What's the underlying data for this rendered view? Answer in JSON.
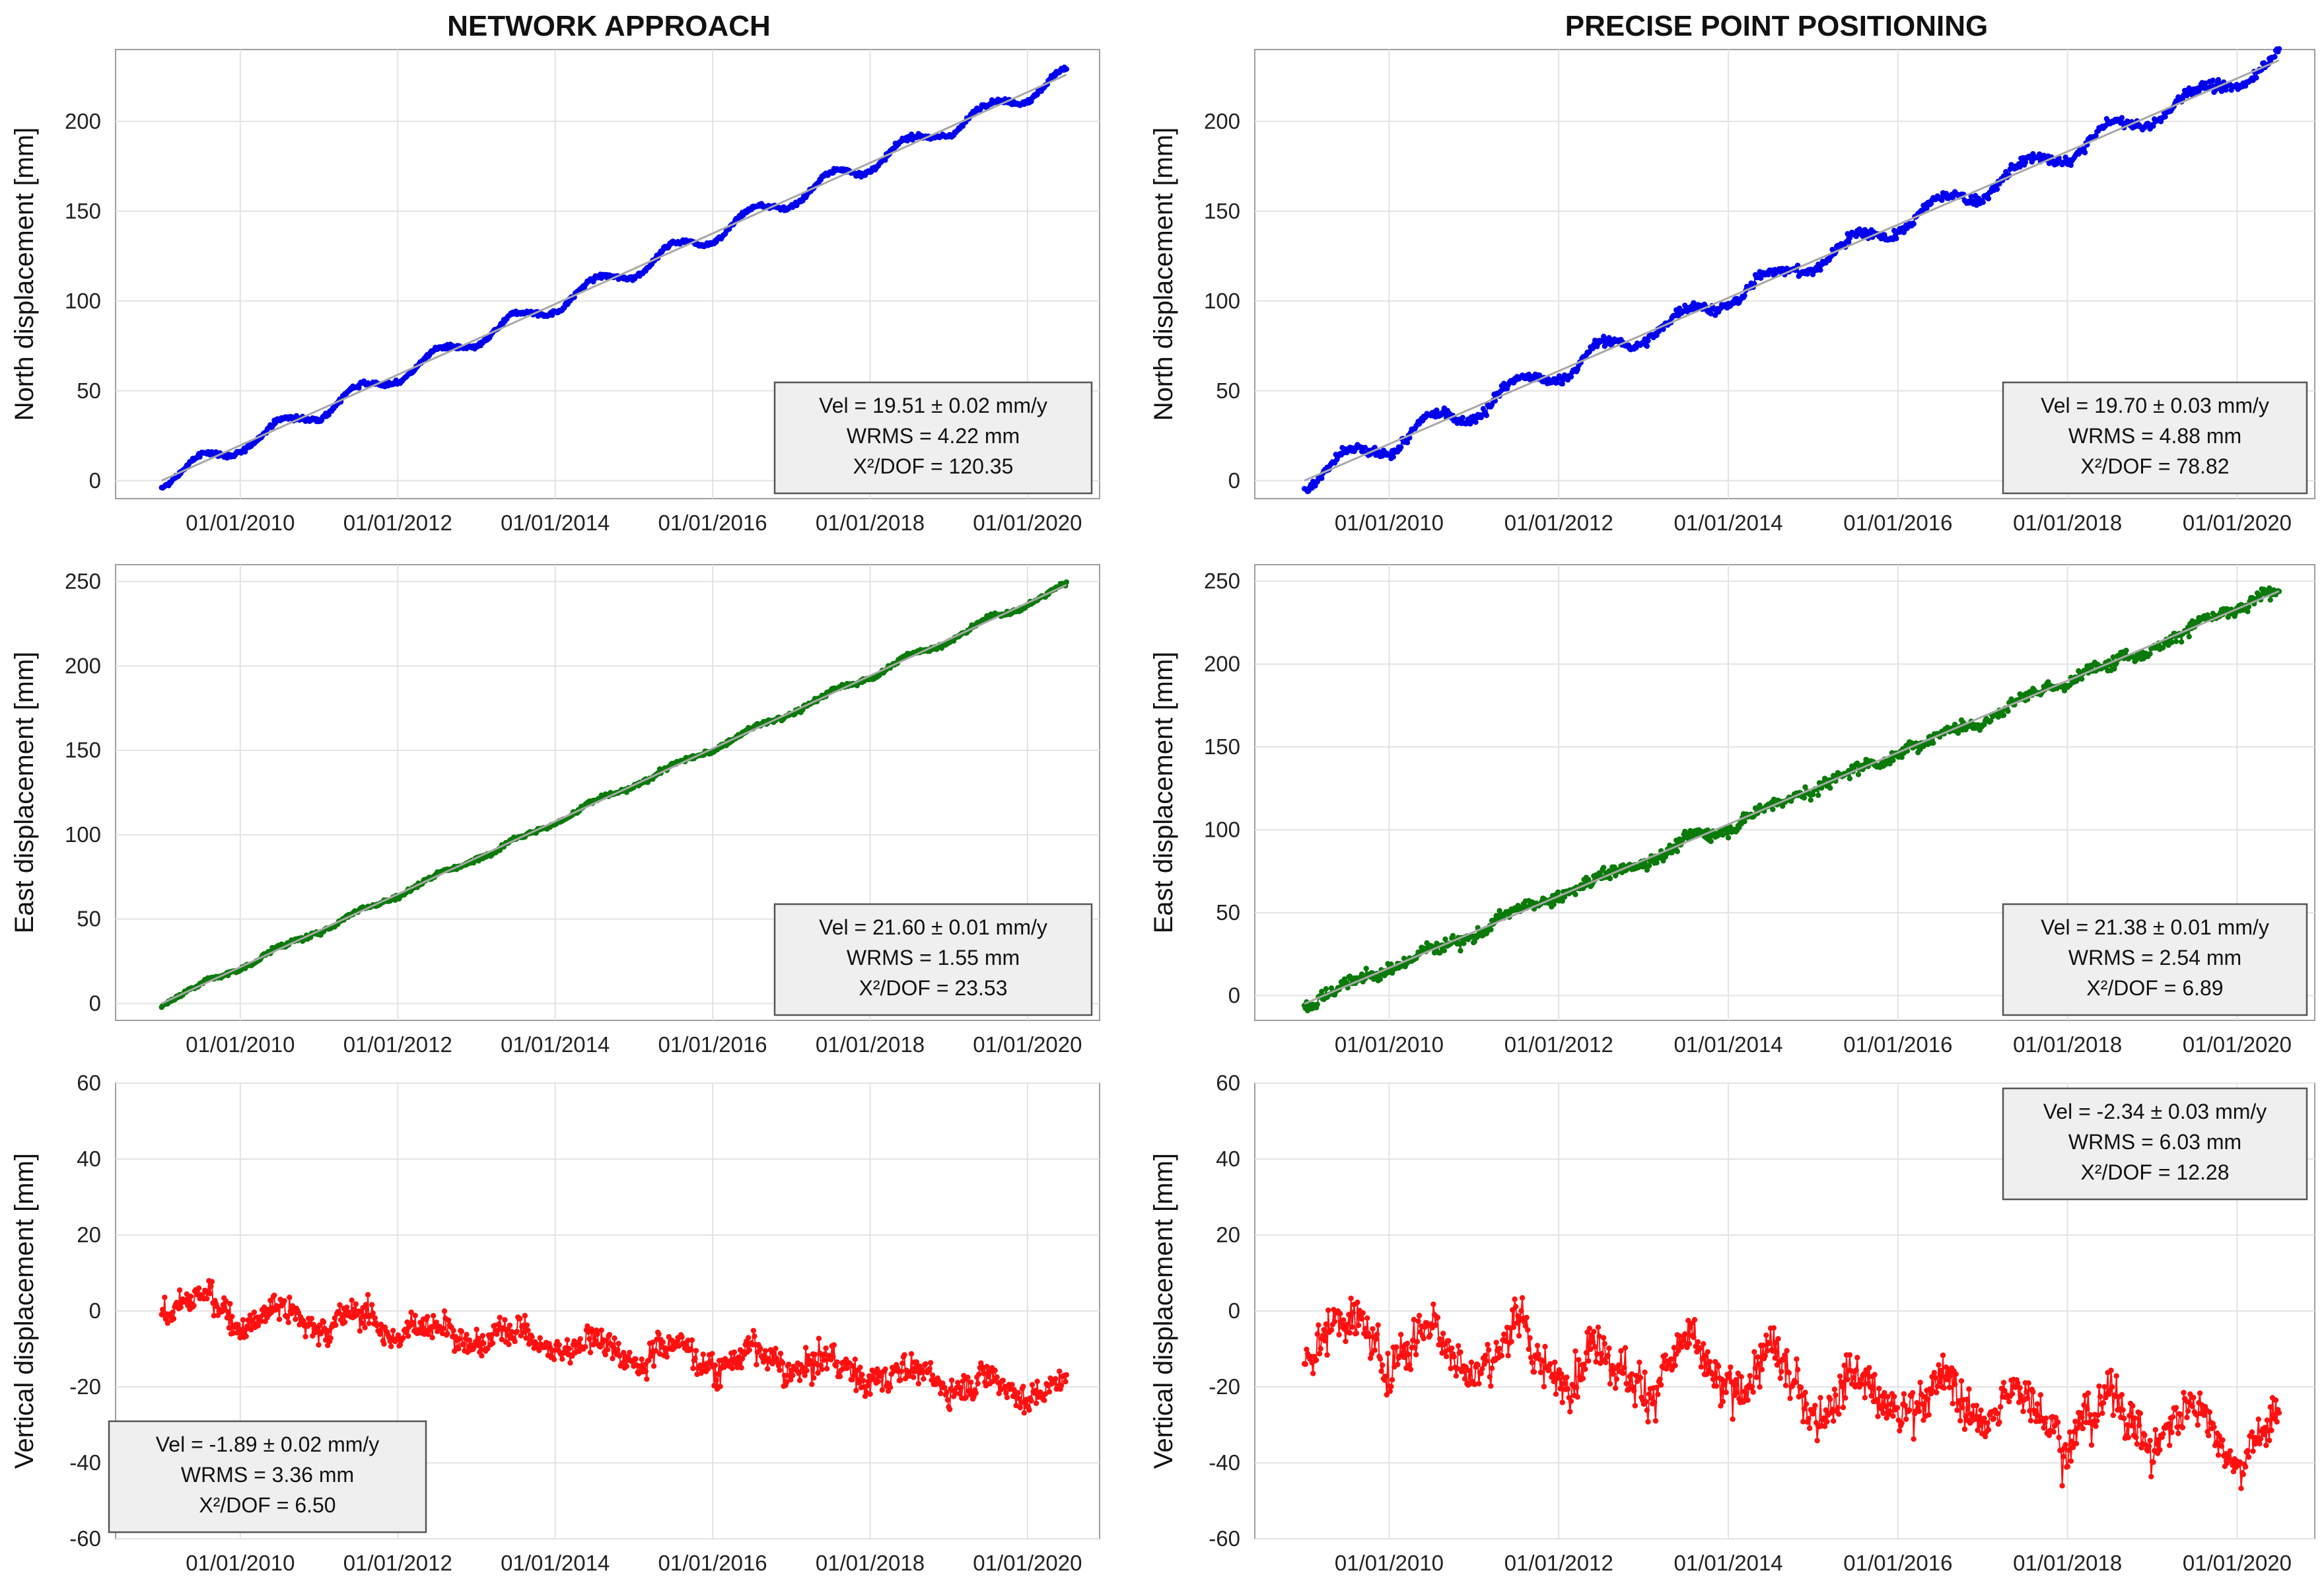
{
  "figure": {
    "columns": [
      "NETWORK APPROACH",
      "PRECISE POINT POSITIONING"
    ]
  },
  "chart_data": [
    {
      "id": "na-north",
      "type": "scatter",
      "column": "NETWORK APPROACH",
      "ylabel": "North displacement  [mm]",
      "xlabel": "",
      "xlim": [
        "2008-06-01",
        "2020-12-01"
      ],
      "ylim": [
        -10,
        240
      ],
      "yticks": [
        0,
        50,
        100,
        150,
        200
      ],
      "xtick_labels": [
        "01/01/2010",
        "01/01/2012",
        "01/01/2014",
        "01/01/2016",
        "01/01/2018",
        "01/01/2020"
      ],
      "color": "#0000ee",
      "series_name": "North displacement",
      "start": "2009-01-01",
      "end": "2020-06-30",
      "start_value": 0,
      "end_value": 226,
      "seasonal_amplitude": 4.5,
      "noise": 1.2,
      "has_fit_line": true,
      "stats": {
        "vel": "Vel = 19.51 ± 0.02 mm/y",
        "wrms": "WRMS = 4.22 mm",
        "chi": "X²/DOF = 120.35",
        "position": "bottom-right"
      }
    },
    {
      "id": "ppp-north",
      "type": "scatter",
      "column": "PRECISE POINT POSITIONING",
      "ylabel": "North displacement [mm]",
      "xlabel": "",
      "xlim": [
        "2008-06-01",
        "2020-12-01"
      ],
      "ylim": [
        -10,
        240
      ],
      "yticks": [
        0,
        50,
        100,
        150,
        200
      ],
      "xtick_labels": [
        "01/01/2010",
        "01/01/2012",
        "01/01/2014",
        "01/01/2016",
        "01/01/2018",
        "01/01/2020"
      ],
      "color": "#0000ee",
      "series_name": "North displacement",
      "start": "2009-01-01",
      "end": "2020-06-30",
      "start_value": 0,
      "end_value": 234,
      "seasonal_amplitude": 5.5,
      "noise": 2.5,
      "has_fit_line": true,
      "stats": {
        "vel": "Vel = 19.70 ± 0.03 mm/y",
        "wrms": "WRMS = 4.88 mm",
        "chi": "X²/DOF = 78.82",
        "position": "bottom-right"
      }
    },
    {
      "id": "na-east",
      "type": "scatter",
      "column": "NETWORK APPROACH",
      "ylabel": "East displacement [mm]",
      "xlabel": "",
      "xlim": [
        "2008-06-01",
        "2020-12-01"
      ],
      "ylim": [
        -10,
        260
      ],
      "yticks": [
        0,
        50,
        100,
        150,
        200,
        250
      ],
      "xtick_labels": [
        "01/01/2010",
        "01/01/2012",
        "01/01/2014",
        "01/01/2016",
        "01/01/2018",
        "01/01/2020"
      ],
      "color": "#0b7a0b",
      "series_name": "East displacement",
      "start": "2009-01-01",
      "end": "2020-06-30",
      "start_value": 0,
      "end_value": 248,
      "seasonal_amplitude": 1.5,
      "noise": 1.2,
      "has_fit_line": true,
      "stats": {
        "vel": "Vel = 21.60 ± 0.01 mm/y",
        "wrms": "WRMS = 1.55 mm",
        "chi": "X²/DOF = 23.53",
        "position": "bottom-right"
      }
    },
    {
      "id": "ppp-east",
      "type": "scatter",
      "column": "PRECISE POINT POSITIONING",
      "ylabel": "East displacement [mm]",
      "xlabel": "",
      "xlim": [
        "2008-06-01",
        "2020-12-01"
      ],
      "ylim": [
        -15,
        260
      ],
      "yticks": [
        0,
        50,
        100,
        150,
        200,
        250
      ],
      "xtick_labels": [
        "01/01/2010",
        "01/01/2012",
        "01/01/2014",
        "01/01/2016",
        "01/01/2018",
        "01/01/2020"
      ],
      "color": "#0b7a0b",
      "series_name": "East displacement",
      "start": "2009-01-01",
      "end": "2020-06-30",
      "start_value": -5,
      "end_value": 244,
      "seasonal_amplitude": 2,
      "noise": 3.5,
      "has_fit_line": true,
      "stats": {
        "vel": "Vel = 21.38 ± 0.01 mm/y",
        "wrms": "WRMS = 2.54 mm",
        "chi": "X²/DOF = 6.89",
        "position": "bottom-right"
      }
    },
    {
      "id": "na-vertical",
      "type": "scatter",
      "column": "NETWORK APPROACH",
      "ylabel": "Vertical displacement [mm]",
      "xlabel": "",
      "xlim": [
        "2008-06-01",
        "2020-12-01"
      ],
      "ylim": [
        -60,
        60
      ],
      "yticks": [
        -60,
        -40,
        -20,
        0,
        20,
        40,
        60
      ],
      "xtick_labels": [
        "01/01/2010",
        "01/01/2012",
        "01/01/2014",
        "01/01/2016",
        "01/01/2018",
        "01/01/2020"
      ],
      "color": "#ff1111",
      "series_name": "Vertical displacement",
      "start": "2009-01-01",
      "end": "2020-06-30",
      "start_value": 2,
      "end_value": -21,
      "seasonal_amplitude": 3,
      "noise": 3.5,
      "has_fit_line": false,
      "stats": {
        "vel": "Vel = -1.89 ± 0.02 mm/y",
        "wrms": "WRMS = 3.36 mm",
        "chi": "X²/DOF = 6.50",
        "position": "bottom-left"
      }
    },
    {
      "id": "ppp-vertical",
      "type": "scatter",
      "column": "PRECISE POINT POSITIONING",
      "ylabel": "Vertical displacement [mm]",
      "xlabel": "",
      "xlim": [
        "2008-06-01",
        "2020-12-01"
      ],
      "ylim": [
        -60,
        60
      ],
      "yticks": [
        -60,
        -40,
        -20,
        0,
        20,
        40,
        60
      ],
      "xtick_labels": [
        "01/01/2010",
        "01/01/2012",
        "01/01/2014",
        "01/01/2016",
        "01/01/2018",
        "01/01/2020"
      ],
      "color": "#ff1111",
      "series_name": "Vertical displacement",
      "start": "2009-01-01",
      "end": "2020-06-30",
      "start_value": -5,
      "end_value": -33,
      "seasonal_amplitude": 6,
      "noise": 5.5,
      "has_fit_line": false,
      "stats": {
        "vel": "Vel = -2.34 ± 0.03 mm/y",
        "wrms": "WRMS = 6.03 mm",
        "chi": "X²/DOF = 12.28",
        "position": "top-right"
      }
    }
  ]
}
